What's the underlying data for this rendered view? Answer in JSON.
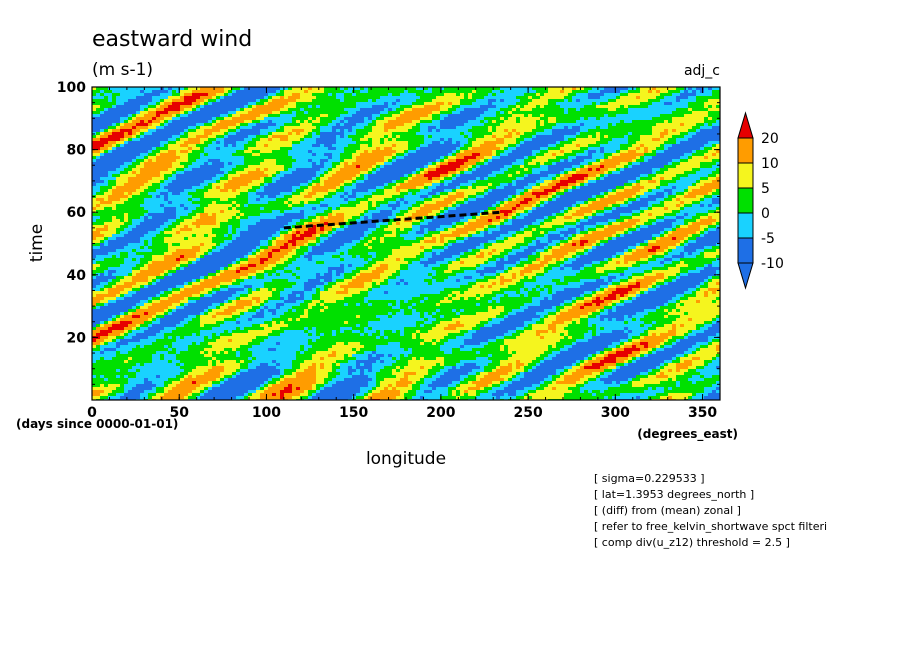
{
  "chart_data": {
    "type": "heatmap",
    "title": "eastward wind",
    "units": "(m s-1)",
    "corner_label": "adj_c",
    "xlabel": "longitude",
    "ylabel": "time",
    "x_units": "(degrees_east)",
    "y_units": "(days since 0000-01-01)",
    "xlim": [
      0,
      360
    ],
    "ylim": [
      0,
      100
    ],
    "x_ticks": [
      0,
      50,
      100,
      150,
      200,
      250,
      300,
      350
    ],
    "y_ticks": [
      20,
      40,
      60,
      80,
      100
    ],
    "colorbar": {
      "levels": [
        -10,
        -5,
        0,
        5,
        10,
        20
      ],
      "colors": [
        "#1e6fe6",
        "#19d2ff",
        "#00e000",
        "#f5f51e",
        "#ff9c00",
        "#e60000"
      ],
      "extend": "both"
    },
    "dashed_line": {
      "x": [
        110,
        235
      ],
      "y": [
        55,
        60
      ]
    },
    "notes": [
      "[ sigma=0.229533 ]",
      "[ lat=1.3953 degrees_north ]",
      "[ (diff) from (mean) zonal ]",
      "[ refer to free_kelvin_shortwave spct filteri",
      "[ comp div(u_z12) threshold = 2.5 ]"
    ]
  }
}
